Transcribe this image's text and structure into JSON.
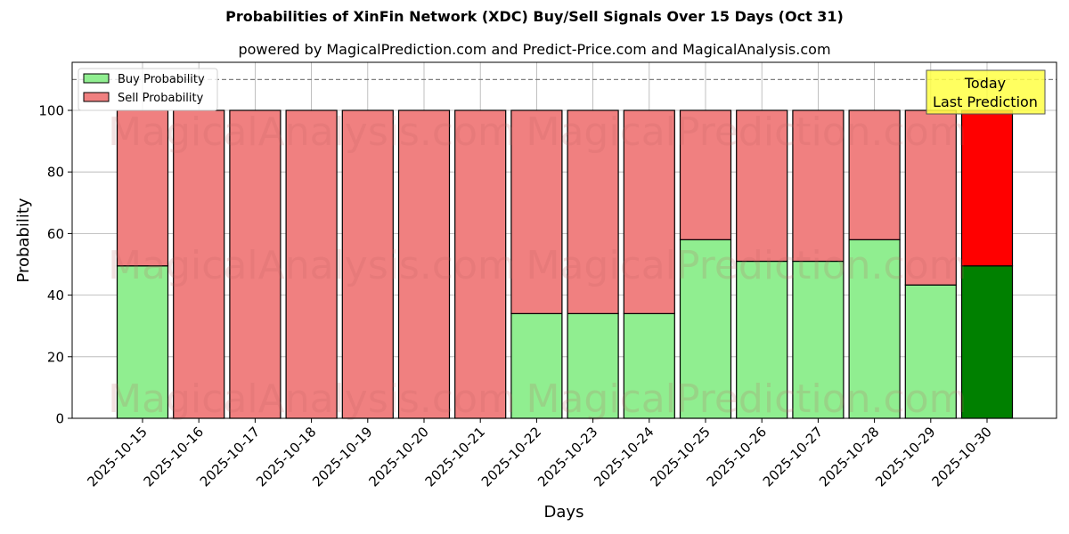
{
  "chart_data": {
    "type": "bar",
    "stacked": true,
    "title": "Probabilities of XinFin Network (XDC) Buy/Sell Signals Over 15 Days (Oct 31)",
    "subtitle": "powered by MagicalPrediction.com and Predict-Price.com and MagicalAnalysis.com",
    "xlabel": "Days",
    "ylabel": "Probability",
    "ylim": [
      0,
      115
    ],
    "yticks": [
      0,
      20,
      40,
      60,
      80,
      100
    ],
    "grid": true,
    "legend_position": "upper left",
    "reference_line": {
      "y": 110,
      "style": "dashed",
      "color": "#808080"
    },
    "categories": [
      "2025-10-15",
      "2025-10-16",
      "2025-10-17",
      "2025-10-18",
      "2025-10-19",
      "2025-10-20",
      "2025-10-21",
      "2025-10-22",
      "2025-10-23",
      "2025-10-24",
      "2025-10-25",
      "2025-10-26",
      "2025-10-27",
      "2025-10-28",
      "2025-10-29",
      "2025-10-30"
    ],
    "series": [
      {
        "name": "Buy Probability",
        "color": "#90ee90",
        "values": [
          49.5,
          0,
          0,
          0,
          0,
          0,
          0,
          34,
          34,
          34,
          58,
          51,
          51,
          58,
          43.3,
          49.5
        ]
      },
      {
        "name": "Sell Probability",
        "color": "#f08080",
        "values": [
          50.5,
          100,
          100,
          100,
          100,
          100,
          100,
          66,
          66,
          66,
          42,
          49,
          49,
          42,
          56.7,
          50.5
        ]
      }
    ],
    "highlight": {
      "index": 15,
      "buy_color": "#008000",
      "sell_color": "#ff0000"
    },
    "annotation": {
      "line1": "Today",
      "line2": "Last Prediction",
      "background": "#ffff44"
    },
    "watermarks": [
      "MagicalAnalysis.com",
      "MagicalPrediction.com"
    ]
  }
}
